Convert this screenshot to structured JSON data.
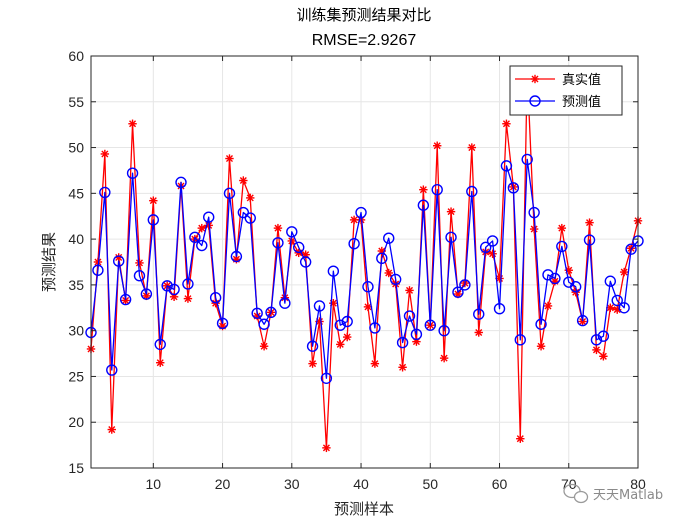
{
  "chart_data": {
    "type": "line",
    "title": "训练集预测结果对比",
    "subtitle": "RMSE=2.9267",
    "xlabel": "预测样本",
    "ylabel": "预测结果",
    "xlim": [
      1,
      80
    ],
    "ylim": [
      15,
      60
    ],
    "xticks": [
      10,
      20,
      30,
      40,
      50,
      60,
      70,
      80
    ],
    "yticks": [
      15,
      20,
      25,
      30,
      35,
      40,
      45,
      50,
      55,
      60
    ],
    "grid": true,
    "legend_position": "top-right",
    "x": [
      1,
      2,
      3,
      4,
      5,
      6,
      7,
      8,
      9,
      10,
      11,
      12,
      13,
      14,
      15,
      16,
      17,
      18,
      19,
      20,
      21,
      22,
      23,
      24,
      25,
      26,
      27,
      28,
      29,
      30,
      31,
      32,
      33,
      34,
      35,
      36,
      37,
      38,
      39,
      40,
      41,
      42,
      43,
      44,
      45,
      46,
      47,
      48,
      49,
      50,
      51,
      52,
      53,
      54,
      55,
      56,
      57,
      58,
      59,
      60,
      61,
      62,
      63,
      64,
      65,
      66,
      67,
      68,
      69,
      70,
      71,
      72,
      73,
      74,
      75,
      76,
      77,
      78,
      79,
      80
    ],
    "series": [
      {
        "name": "真实值",
        "color": "#ff0000",
        "marker": "asterisk",
        "values": [
          28.0,
          37.5,
          49.3,
          19.2,
          38.0,
          33.3,
          52.6,
          37.4,
          33.8,
          44.2,
          26.5,
          34.9,
          33.7,
          45.8,
          33.5,
          40.0,
          41.2,
          41.5,
          33.0,
          30.5,
          48.8,
          37.8,
          46.4,
          44.5,
          31.6,
          28.3,
          32.0,
          41.2,
          33.6,
          39.8,
          38.5,
          38.3,
          26.4,
          31.0,
          17.2,
          33.0,
          28.5,
          29.3,
          42.1,
          42.1,
          32.6,
          26.4,
          38.7,
          36.3,
          35.1,
          26.0,
          34.4,
          28.8,
          45.4,
          30.6,
          50.2,
          27.0,
          43.0,
          34.0,
          35.2,
          50.0,
          29.8,
          38.6,
          38.4,
          35.7,
          52.6,
          45.7,
          18.2,
          58.4,
          41.1,
          28.3,
          32.7,
          35.4,
          41.2,
          36.6,
          34.2,
          31.0,
          41.8,
          27.9,
          27.2,
          32.5,
          32.3,
          36.4,
          39.0,
          42.0
        ]
      },
      {
        "name": "预测值",
        "color": "#0000ff",
        "marker": "circle",
        "values": [
          29.8,
          36.6,
          45.1,
          25.7,
          37.6,
          33.4,
          47.2,
          36.0,
          34.0,
          42.1,
          28.5,
          34.9,
          34.5,
          46.2,
          35.1,
          40.2,
          39.3,
          42.4,
          33.6,
          30.8,
          45.0,
          38.1,
          42.9,
          42.3,
          31.9,
          30.7,
          32.0,
          39.6,
          33.0,
          40.8,
          39.1,
          37.5,
          28.3,
          32.7,
          24.8,
          36.5,
          30.6,
          31.0,
          39.5,
          42.9,
          34.8,
          30.3,
          37.9,
          40.1,
          35.6,
          28.7,
          31.6,
          29.6,
          43.7,
          30.6,
          45.4,
          30.0,
          40.2,
          34.2,
          35.0,
          45.2,
          31.8,
          39.1,
          39.8,
          32.4,
          48.0,
          45.6,
          29.0,
          48.7,
          42.9,
          30.7,
          36.1,
          35.7,
          39.2,
          35.3,
          34.8,
          31.1,
          39.9,
          29.0,
          29.4,
          35.4,
          33.3,
          32.5,
          38.9,
          39.8
        ]
      }
    ]
  },
  "watermark": "天天Matlab"
}
